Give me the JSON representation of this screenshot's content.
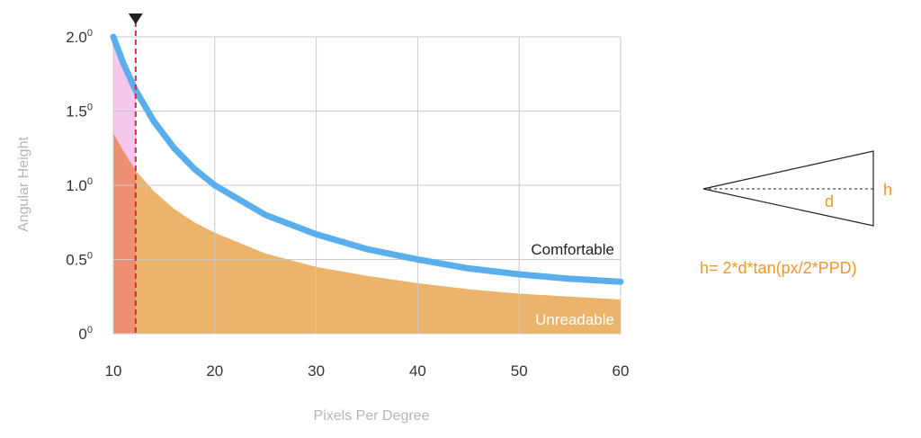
{
  "chart_data": {
    "type": "area",
    "title": "",
    "xlabel": "Pixels Per Degree",
    "ylabel": "Angular Height",
    "xlim": [
      10,
      60
    ],
    "ylim": [
      0,
      2.0
    ],
    "x_ticks": [
      "10",
      "20",
      "30",
      "40",
      "50",
      "60"
    ],
    "y_ticks": [
      {
        "value": 0,
        "base": "0",
        "sup": "0"
      },
      {
        "value": 0.5,
        "base": "0.5",
        "sup": "0"
      },
      {
        "value": 1.0,
        "base": "1.0",
        "sup": "0"
      },
      {
        "value": 1.5,
        "base": "1.5",
        "sup": "0"
      },
      {
        "value": 2.0,
        "base": "2.0",
        "sup": "0"
      }
    ],
    "grid": true,
    "series": [
      {
        "name": "Comfortable",
        "kind": "line",
        "color": "#5aaeec",
        "x": [
          10,
          11,
          12.2,
          14,
          16,
          18,
          20,
          25,
          30,
          35,
          40,
          45,
          50,
          55,
          60
        ],
        "y": [
          2.0,
          1.82,
          1.64,
          1.43,
          1.25,
          1.11,
          1.0,
          0.8,
          0.67,
          0.57,
          0.5,
          0.44,
          0.4,
          0.37,
          0.35
        ]
      },
      {
        "name": "Unreadable",
        "kind": "area",
        "color": "#ecb46a",
        "x": [
          10,
          11,
          12.2,
          14,
          16,
          18,
          20,
          25,
          30,
          35,
          40,
          45,
          50,
          55,
          60
        ],
        "y": [
          1.35,
          1.23,
          1.1,
          0.96,
          0.84,
          0.75,
          0.68,
          0.54,
          0.45,
          0.39,
          0.34,
          0.3,
          0.27,
          0.25,
          0.23
        ]
      }
    ],
    "threshold_x": 12.2,
    "colors": {
      "left_unreadable": "#ee8f72",
      "left_between": "#f8c7ee",
      "threshold": "#d42c2c",
      "grid": "#c9c9c9",
      "accent": "#f0972a"
    }
  },
  "diagram": {
    "h_label": "h",
    "d_label": "d",
    "formula": "h= 2*d*tan(px/2*PPD)"
  }
}
